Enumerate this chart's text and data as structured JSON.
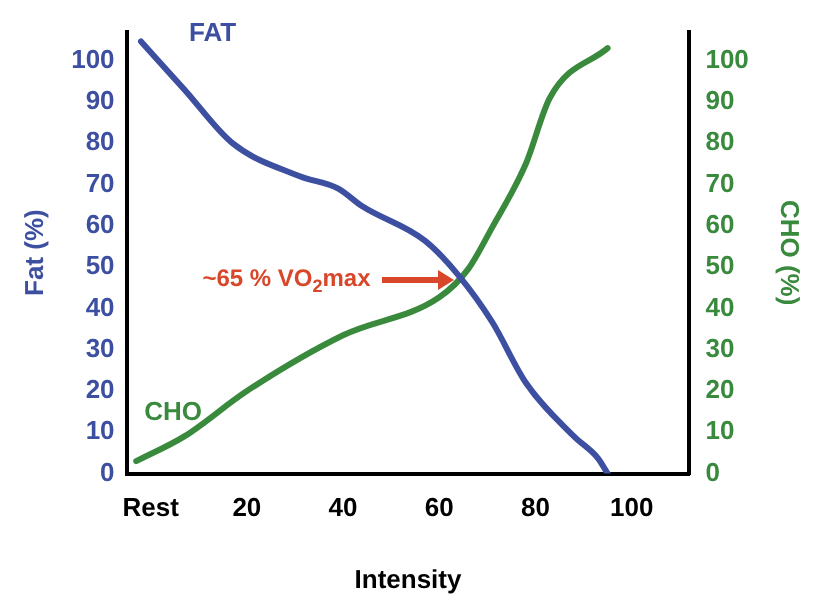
{
  "chart_data": {
    "type": "line",
    "xlabel": "Intensity",
    "ylabel": "Fat (%)",
    "y2label": "CHO (%)",
    "xlim": [
      -5,
      112
    ],
    "xticks": [
      {
        "value": 0,
        "label": "Rest"
      },
      20,
      40,
      60,
      80,
      100
    ],
    "ylim": [
      0,
      107
    ],
    "yticks": [
      0,
      10,
      20,
      30,
      40,
      50,
      60,
      70,
      80,
      90,
      100
    ],
    "y2lim": [
      0,
      107
    ],
    "y2ticks": [
      0,
      10,
      20,
      30,
      40,
      50,
      60,
      70,
      80,
      90,
      100
    ],
    "grid": false,
    "legend": false,
    "marker": "none",
    "line_style": "solid",
    "series": [
      {
        "name": "FAT",
        "color": "#3d4fa0",
        "x": [
          -2,
          7,
          17,
          31,
          39,
          44,
          57,
          64,
          71,
          78,
          88,
          93,
          95
        ],
        "values": [
          104.6,
          93,
          80,
          72,
          69,
          64.7,
          56.4,
          48,
          36.7,
          22,
          9,
          3.7,
          0
        ]
      },
      {
        "name": "CHO",
        "color": "#3a8a3e",
        "axis": "y2",
        "x": [
          -3,
          7,
          20,
          40,
          60,
          66,
          71,
          78,
          83,
          95
        ],
        "values": [
          3,
          9,
          20,
          33.5,
          42.7,
          49.5,
          59.6,
          75,
          91,
          103
        ]
      }
    ],
    "annotations": [
      {
        "text": "~65 % VO$_{2}$max",
        "x": 64,
        "y": 47
      }
    ]
  }
}
